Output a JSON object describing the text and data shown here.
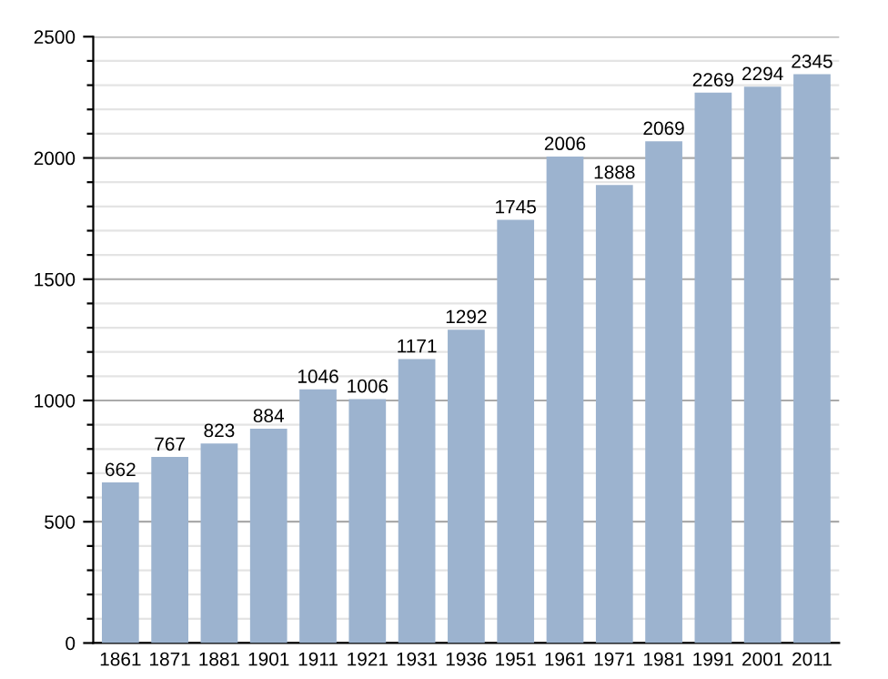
{
  "chart_data": {
    "type": "bar",
    "categories": [
      "1861",
      "1871",
      "1881",
      "1901",
      "1911",
      "1921",
      "1931",
      "1936",
      "1951",
      "1961",
      "1971",
      "1981",
      "1991",
      "2001",
      "2011"
    ],
    "values": [
      662,
      767,
      823,
      884,
      1046,
      1006,
      1171,
      1292,
      1745,
      2006,
      1888,
      2069,
      2269,
      2294,
      2345
    ],
    "color": "#9cb3cf",
    "ylim": [
      0,
      2500
    ],
    "yticks": [
      0,
      {
        "value": 100,
        "label": null
      },
      {
        "value": 200,
        "label": null
      },
      {
        "value": 300,
        "label": null
      },
      {
        "value": 400,
        "label": null
      },
      500,
      {
        "value": 600,
        "label": null
      },
      {
        "value": 700,
        "label": null
      },
      {
        "value": 800,
        "label": null
      },
      {
        "value": 900,
        "label": null
      },
      1000,
      {
        "value": 1100,
        "label": null
      },
      {
        "value": 1200,
        "label": null
      },
      {
        "value": 1300,
        "label": null
      },
      {
        "value": 1400,
        "label": null
      },
      1500,
      {
        "value": 1600,
        "label": null
      },
      {
        "value": 1700,
        "label": null
      },
      {
        "value": 1800,
        "label": null
      },
      {
        "value": 1900,
        "label": null
      },
      2000,
      {
        "value": 2100,
        "label": null
      },
      {
        "value": 2200,
        "label": null
      },
      {
        "value": 2300,
        "label": null
      },
      {
        "value": 2400,
        "label": null
      },
      2500
    ],
    "grid": "y",
    "data_labels": true
  }
}
